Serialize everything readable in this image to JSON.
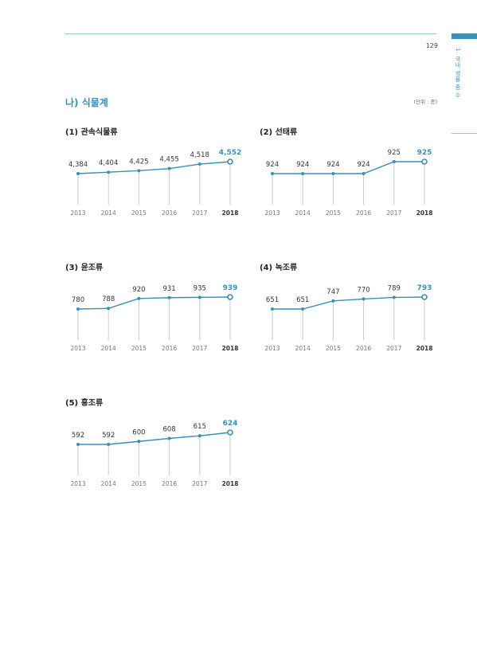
{
  "header": {
    "page_number": "129",
    "side_label": "1. 국내 생물 종 수",
    "section_title": "나) 식물계",
    "unit": "(단위 : 종)"
  },
  "colors": {
    "accent": "#3a8fb7",
    "line": "#3a8fb7",
    "stem": "#c9c9c9",
    "text": "#333333"
  },
  "chart_data": [
    {
      "type": "line",
      "title": "(1) 관속식물류",
      "categories": [
        "2013",
        "2014",
        "2015",
        "2016",
        "2017",
        "2018"
      ],
      "values": [
        4384,
        4404,
        4425,
        4455,
        4518,
        4552
      ],
      "value_labels": [
        "4,384",
        "4,404",
        "4,425",
        "4,455",
        "4,518",
        "4,552"
      ],
      "highlight_last": true
    },
    {
      "type": "line",
      "title": "(2) 선태류",
      "categories": [
        "2013",
        "2014",
        "2015",
        "2016",
        "2017",
        "2018"
      ],
      "values": [
        924,
        924,
        924,
        924,
        925,
        925
      ],
      "value_labels": [
        "924",
        "924",
        "924",
        "924",
        "925",
        "925"
      ],
      "highlight_last": true
    },
    {
      "type": "line",
      "title": "(3) 윤조류",
      "categories": [
        "2013",
        "2014",
        "2015",
        "2016",
        "2017",
        "2018"
      ],
      "values": [
        780,
        788,
        920,
        931,
        935,
        939
      ],
      "value_labels": [
        "780",
        "788",
        "920",
        "931",
        "935",
        "939"
      ],
      "highlight_last": true
    },
    {
      "type": "line",
      "title": "(4) 녹조류",
      "categories": [
        "2013",
        "2014",
        "2015",
        "2016",
        "2017",
        "2018"
      ],
      "values": [
        651,
        651,
        747,
        770,
        789,
        793
      ],
      "value_labels": [
        "651",
        "651",
        "747",
        "770",
        "789",
        "793"
      ],
      "highlight_last": true
    },
    {
      "type": "line",
      "title": "(5) 홍조류",
      "categories": [
        "2013",
        "2014",
        "2015",
        "2016",
        "2017",
        "2018"
      ],
      "values": [
        592,
        592,
        600,
        608,
        615,
        624
      ],
      "value_labels": [
        "592",
        "592",
        "600",
        "608",
        "615",
        "624"
      ],
      "highlight_last": true
    }
  ]
}
